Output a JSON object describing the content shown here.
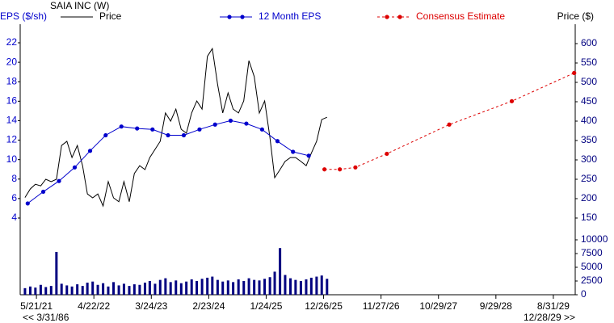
{
  "chart_data": {
    "type": "line",
    "title": "SAIA INC (W)",
    "ylabel": "EPS ($/sh)",
    "y2label": "Price ($)",
    "x": [
      "3/15/21",
      "4/15/21",
      "5/15/21",
      "6/15/21",
      "7/15/21",
      "8/15/21",
      "9/15/21",
      "10/15/21",
      "11/15/21",
      "12/15/21",
      "1/15/22",
      "2/15/22",
      "3/15/22",
      "4/15/22",
      "5/15/22",
      "6/15/22",
      "7/15/22",
      "8/15/22",
      "9/15/22",
      "10/15/22",
      "11/15/22",
      "12/15/22",
      "1/15/23",
      "2/15/23",
      "3/15/23",
      "4/15/23",
      "5/15/23",
      "6/15/23",
      "7/15/23",
      "8/15/23",
      "9/15/23",
      "10/15/23",
      "11/15/23",
      "12/15/23",
      "1/15/24",
      "2/15/24",
      "3/15/24",
      "4/15/24",
      "5/15/24",
      "6/15/24",
      "7/15/24",
      "8/15/24",
      "9/15/24",
      "10/15/24",
      "11/15/24",
      "12/15/24",
      "1/15/25",
      "2/15/25",
      "3/15/25",
      "4/15/25",
      "5/15/25",
      "6/15/25",
      "7/15/25",
      "8/15/25",
      "9/15/25",
      "10/15/25",
      "11/15/25",
      "12/15/25",
      "1/15/26"
    ],
    "series": [
      {
        "name": "Price",
        "color": "#000000",
        "axis": "y2",
        "values": [
          203,
          225,
          237,
          233,
          250,
          244,
          250,
          337,
          348,
          306,
          337,
          285,
          212,
          202,
          212,
          181,
          244,
          202,
          192,
          244,
          192,
          265,
          285,
          275,
          306,
          327,
          348,
          421,
          400,
          431,
          379,
          369,
          421,
          452,
          431,
          567,
          587,
          494,
          421,
          473,
          431,
          421,
          452,
          556,
          515,
          421,
          452,
          358,
          254,
          275,
          296,
          306,
          306,
          296,
          285,
          317,
          348,
          404,
          410
        ]
      },
      {
        "name": "12 Month EPS",
        "color": "#0000cc",
        "marker": "circle",
        "x": [
          "3/31/21",
          "6/30/21",
          "9/30/21",
          "12/31/21",
          "3/31/22",
          "6/30/22",
          "9/30/22",
          "12/31/22",
          "3/31/23",
          "6/30/23",
          "9/30/23",
          "12/31/23",
          "3/31/24",
          "6/30/24",
          "9/30/24",
          "12/31/24",
          "3/31/25",
          "6/30/25",
          "9/30/25"
        ],
        "values": [
          5.5,
          6.7,
          7.8,
          9.2,
          10.9,
          12.5,
          13.4,
          13.2,
          13.1,
          12.5,
          12.5,
          13.1,
          13.6,
          14.0,
          13.7,
          13.1,
          11.9,
          10.8,
          10.4
        ]
      },
      {
        "name": "Consensus Estimate",
        "color": "#dd0000",
        "marker": "circle",
        "dashed": true,
        "x": [
          "12/31/25",
          "3/31/26",
          "6/30/26",
          "12/31/26",
          "12/31/27",
          "12/31/28",
          "12/31/29"
        ],
        "values": [
          9.0,
          9.0,
          9.2,
          10.6,
          13.6,
          16.0,
          18.9
        ]
      }
    ],
    "volume": {
      "type": "bar",
      "color": "#000080",
      "values": [
        1200,
        1500,
        1300,
        1800,
        1400,
        1600,
        7800,
        2000,
        1700,
        1500,
        1900,
        1600,
        2200,
        2400,
        1800,
        2100,
        1500,
        2300,
        1700,
        2000,
        1600,
        1900,
        1800,
        2200,
        2500,
        2000,
        2700,
        3000,
        2300,
        2600,
        2100,
        2400,
        2800,
        2500,
        2900,
        3100,
        3300,
        2700,
        2400,
        2600,
        2300,
        2800,
        2500,
        3000,
        2700,
        2600,
        2900,
        3200,
        4200,
        8500,
        3600,
        3000,
        2700,
        2500,
        2800,
        3100,
        3300,
        3500,
        2900
      ],
      "ylim": [
        0,
        10000
      ],
      "yticks": [
        0,
        2500,
        5000,
        7500,
        10000
      ]
    },
    "xlim": [
      "2/15/21",
      "1/6/30"
    ],
    "xticks": [
      "5/21/21",
      "4/22/22",
      "3/24/23",
      "2/23/24",
      "1/24/25",
      "12/26/25",
      "11/27/26",
      "10/29/27",
      "9/29/28",
      "8/31/29"
    ],
    "range_labels": [
      "<< 3/31/86",
      "12/28/29 >>"
    ],
    "ylim": [
      4,
      22
    ],
    "yticks": [
      4,
      6,
      8,
      10,
      12,
      14,
      16,
      18,
      20,
      22
    ],
    "y2lim": [
      150,
      600
    ],
    "y2ticks": [
      150,
      200,
      250,
      300,
      350,
      400,
      450,
      500,
      550,
      600
    ]
  }
}
